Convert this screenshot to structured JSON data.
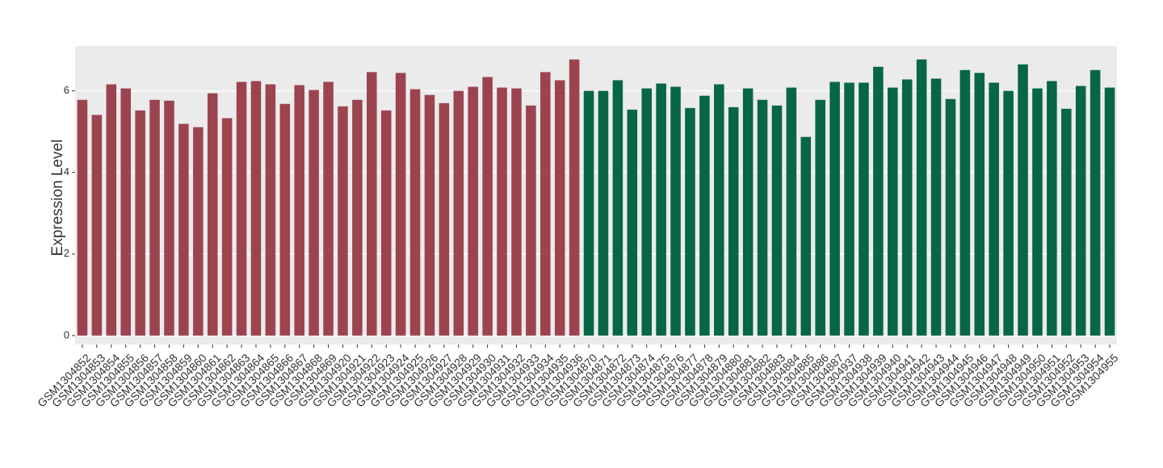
{
  "chart_data": {
    "type": "bar",
    "y_label": "Expression Level",
    "categories": [
      "GSM1304852",
      "GSM1304853",
      "GSM1304854",
      "GSM1304855",
      "GSM1304856",
      "GSM1304857",
      "GSM1304858",
      "GSM1304859",
      "GSM1304860",
      "GSM1304861",
      "GSM1304862",
      "GSM1304863",
      "GSM1304864",
      "GSM1304865",
      "GSM1304866",
      "GSM1304867",
      "GSM1304868",
      "GSM1304869",
      "GSM1304920",
      "GSM1304921",
      "GSM1304922",
      "GSM1304923",
      "GSM1304924",
      "GSM1304925",
      "GSM1304926",
      "GSM1304927",
      "GSM1304928",
      "GSM1304929",
      "GSM1304930",
      "GSM1304931",
      "GSM1304932",
      "GSM1304933",
      "GSM1304934",
      "GSM1304935",
      "GSM1304936",
      "GSM1304870",
      "GSM1304871",
      "GSM1304872",
      "GSM1304873",
      "GSM1304874",
      "GSM1304875",
      "GSM1304876",
      "GSM1304877",
      "GSM1304878",
      "GSM1304879",
      "GSM1304880",
      "GSM1304881",
      "GSM1304882",
      "GSM1304883",
      "GSM1304884",
      "GSM1304885",
      "GSM1304886",
      "GSM1304887",
      "GSM1304937",
      "GSM1304938",
      "GSM1304939",
      "GSM1304940",
      "GSM1304941",
      "GSM1304942",
      "GSM1304943",
      "GSM1304944",
      "GSM1304945",
      "GSM1304946",
      "GSM1304947",
      "GSM1304948",
      "GSM1304949",
      "GSM1304950",
      "GSM1304951",
      "GSM1304952",
      "GSM1304953",
      "GSM1304954",
      "GSM1304955"
    ],
    "values": [
      5.78,
      5.41,
      6.16,
      6.06,
      5.52,
      5.78,
      5.76,
      5.19,
      5.11,
      5.94,
      5.33,
      6.22,
      6.24,
      6.16,
      5.68,
      6.14,
      6.02,
      6.22,
      5.62,
      5.78,
      6.46,
      5.52,
      6.44,
      6.04,
      5.9,
      5.7,
      6.0,
      6.1,
      6.34,
      6.08,
      6.06,
      5.64,
      6.46,
      6.26,
      6.77,
      6.0,
      6.0,
      6.26,
      5.54,
      6.06,
      6.18,
      6.1,
      5.58,
      5.88,
      6.16,
      5.6,
      6.06,
      5.78,
      5.64,
      6.08,
      4.87,
      5.78,
      6.22,
      6.2,
      6.2,
      6.59,
      6.08,
      6.28,
      6.77,
      6.3,
      5.8,
      6.51,
      6.44,
      6.2,
      6.0,
      6.65,
      6.06,
      6.24,
      5.56,
      6.12,
      6.51,
      6.08
    ],
    "colors": [
      "#9b4450",
      "#9b4450",
      "#9b4450",
      "#9b4450",
      "#9b4450",
      "#9b4450",
      "#9b4450",
      "#9b4450",
      "#9b4450",
      "#9b4450",
      "#9b4450",
      "#9b4450",
      "#9b4450",
      "#9b4450",
      "#9b4450",
      "#9b4450",
      "#9b4450",
      "#9b4450",
      "#9b4450",
      "#9b4450",
      "#9b4450",
      "#9b4450",
      "#9b4450",
      "#9b4450",
      "#9b4450",
      "#9b4450",
      "#9b4450",
      "#9b4450",
      "#9b4450",
      "#9b4450",
      "#9b4450",
      "#9b4450",
      "#9b4450",
      "#9b4450",
      "#9b4450",
      "#076644",
      "#076644",
      "#076644",
      "#076644",
      "#076644",
      "#076644",
      "#076644",
      "#076644",
      "#076644",
      "#076644",
      "#076644",
      "#076644",
      "#076644",
      "#076644",
      "#076644",
      "#076644",
      "#076644",
      "#076644",
      "#076644",
      "#076644",
      "#076644",
      "#076644",
      "#076644",
      "#076644",
      "#076644",
      "#076644",
      "#076644",
      "#076644",
      "#076644",
      "#076644",
      "#076644",
      "#076644",
      "#076644",
      "#076644",
      "#076644",
      "#076644",
      "#076644"
    ],
    "ylim": [
      -0.22,
      7.1
    ],
    "yticks": [
      0,
      2,
      4,
      6
    ],
    "grid": true
  }
}
